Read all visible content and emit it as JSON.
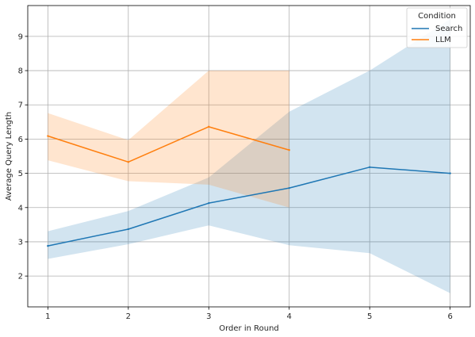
{
  "chart_data": {
    "type": "line",
    "xlabel": "Order in Round",
    "ylabel": "Average Query Length",
    "xlim": [
      0.75,
      6.25
    ],
    "ylim": [
      1.1,
      9.9
    ],
    "xticks": [
      1,
      2,
      3,
      4,
      5,
      6
    ],
    "yticks": [
      2,
      3,
      4,
      5,
      6,
      7,
      8,
      9
    ],
    "grid": true,
    "legend": {
      "title": "Condition",
      "placement": "top-right"
    },
    "series": [
      {
        "name": "Search",
        "color": "#1f77b4",
        "x": [
          1,
          2,
          3,
          4,
          5,
          6
        ],
        "y": [
          2.88,
          3.37,
          4.13,
          4.57,
          5.18,
          5.0
        ],
        "lower": [
          2.5,
          2.93,
          3.48,
          2.9,
          2.67,
          1.5
        ],
        "upper": [
          3.31,
          3.9,
          4.88,
          6.8,
          8.0,
          9.5
        ]
      },
      {
        "name": "LLM",
        "color": "#ff7f0e",
        "x": [
          1,
          2,
          3,
          4
        ],
        "y": [
          6.09,
          5.33,
          6.36,
          5.68
        ],
        "lower": [
          5.38,
          4.77,
          4.67,
          4.0
        ],
        "upper": [
          6.76,
          5.97,
          8.0,
          8.0
        ]
      }
    ]
  }
}
